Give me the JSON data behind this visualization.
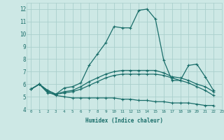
{
  "xlabel": "Humidex (Indice chaleur)",
  "bg_color": "#cde8e5",
  "grid_color": "#aacfcc",
  "line_color": "#1a6e6a",
  "xlim": [
    -0.5,
    23
  ],
  "ylim": [
    4,
    12.5
  ],
  "xticks": [
    0,
    1,
    2,
    3,
    4,
    5,
    6,
    7,
    8,
    9,
    10,
    11,
    12,
    13,
    14,
    15,
    16,
    17,
    18,
    19,
    20,
    21,
    22,
    23
  ],
  "yticks": [
    4,
    5,
    6,
    7,
    8,
    9,
    10,
    11,
    12
  ],
  "series": [
    [
      5.6,
      6.0,
      5.3,
      5.2,
      5.7,
      5.8,
      6.1,
      7.5,
      8.4,
      9.3,
      10.6,
      10.5,
      10.5,
      11.9,
      12.0,
      11.2,
      7.9,
      6.3,
      6.3,
      7.5,
      7.6,
      6.6,
      5.5
    ],
    [
      5.6,
      6.0,
      5.5,
      5.2,
      5.4,
      5.5,
      5.8,
      6.2,
      6.5,
      6.8,
      7.0,
      7.1,
      7.1,
      7.1,
      7.1,
      7.1,
      6.9,
      6.6,
      6.5,
      6.3,
      6.0,
      5.8,
      5.4
    ],
    [
      5.6,
      6.0,
      5.4,
      5.1,
      5.0,
      4.9,
      4.9,
      4.9,
      4.9,
      4.9,
      4.9,
      4.8,
      4.8,
      4.7,
      4.7,
      4.6,
      4.6,
      4.5,
      4.5,
      4.5,
      4.4,
      4.3,
      4.3
    ],
    [
      5.6,
      6.0,
      5.5,
      5.2,
      5.3,
      5.4,
      5.6,
      5.9,
      6.2,
      6.5,
      6.7,
      6.8,
      6.8,
      6.8,
      6.8,
      6.8,
      6.7,
      6.5,
      6.3,
      6.1,
      5.8,
      5.5,
      5.1
    ]
  ]
}
